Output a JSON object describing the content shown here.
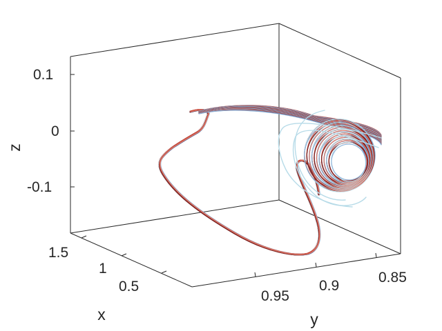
{
  "chart_data": {
    "type": "line",
    "projection": "3d",
    "title": "",
    "xlabel": "x",
    "ylabel": "y",
    "zlabel": "z",
    "xlim": [
      0.2,
      1.7
    ],
    "ylim": [
      0.83,
      0.99
    ],
    "zlim": [
      -0.2,
      0.15
    ],
    "x_ticks": [
      "0.5",
      "1",
      "1.5"
    ],
    "y_ticks": [
      "0.95",
      "0.9",
      "0.85"
    ],
    "z_ticks": [
      "0.1",
      "0",
      "-0.1"
    ],
    "x_tick_values": [
      0.5,
      1.0,
      1.5
    ],
    "y_tick_values": [
      0.95,
      0.9,
      0.85
    ],
    "z_tick_values": [
      0.1,
      0.0,
      -0.1
    ],
    "series_colors": [
      "#c0392b",
      "#e07b6a",
      "#2c5aa0",
      "#8fb4d9",
      "#b7dbe8",
      "#7a1f1f"
    ],
    "grid": false,
    "legend": "none",
    "trajectory_path": [
      {
        "x": 1.0,
        "y": 0.965,
        "z": 0.045
      },
      {
        "x": 1.4,
        "y": 0.975,
        "z": -0.05
      },
      {
        "x": 1.55,
        "y": 0.945,
        "z": -0.17
      },
      {
        "x": 1.2,
        "y": 0.9,
        "z": -0.22
      },
      {
        "x": 0.5,
        "y": 0.9,
        "z": -0.16
      },
      {
        "x": 0.28,
        "y": 0.9,
        "z": -0.04
      },
      {
        "x": 0.32,
        "y": 0.905,
        "z": 0.06
      },
      {
        "x": 0.45,
        "y": 0.87,
        "z": 0.06
      },
      {
        "x": 0.55,
        "y": 0.86,
        "z": 0.0
      }
    ]
  }
}
